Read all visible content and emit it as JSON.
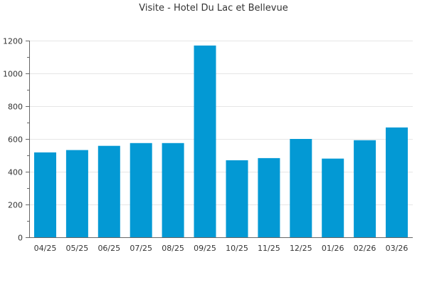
{
  "chart_data": {
    "type": "bar",
    "title": "Visite - Hotel Du Lac et Bellevue",
    "categories": [
      "04/25",
      "05/25",
      "06/25",
      "07/25",
      "08/25",
      "09/25",
      "10/25",
      "11/25",
      "12/25",
      "01/26",
      "02/26",
      "03/26"
    ],
    "values": [
      518,
      532,
      558,
      575,
      575,
      1170,
      470,
      483,
      600,
      480,
      592,
      670
    ],
    "xlabel": "",
    "ylabel": "",
    "ylim": [
      0,
      1200
    ],
    "yticks": [
      0,
      200,
      400,
      600,
      800,
      1000,
      1200
    ],
    "grid": true,
    "legend": "none",
    "bar_color": "#0399d4"
  }
}
